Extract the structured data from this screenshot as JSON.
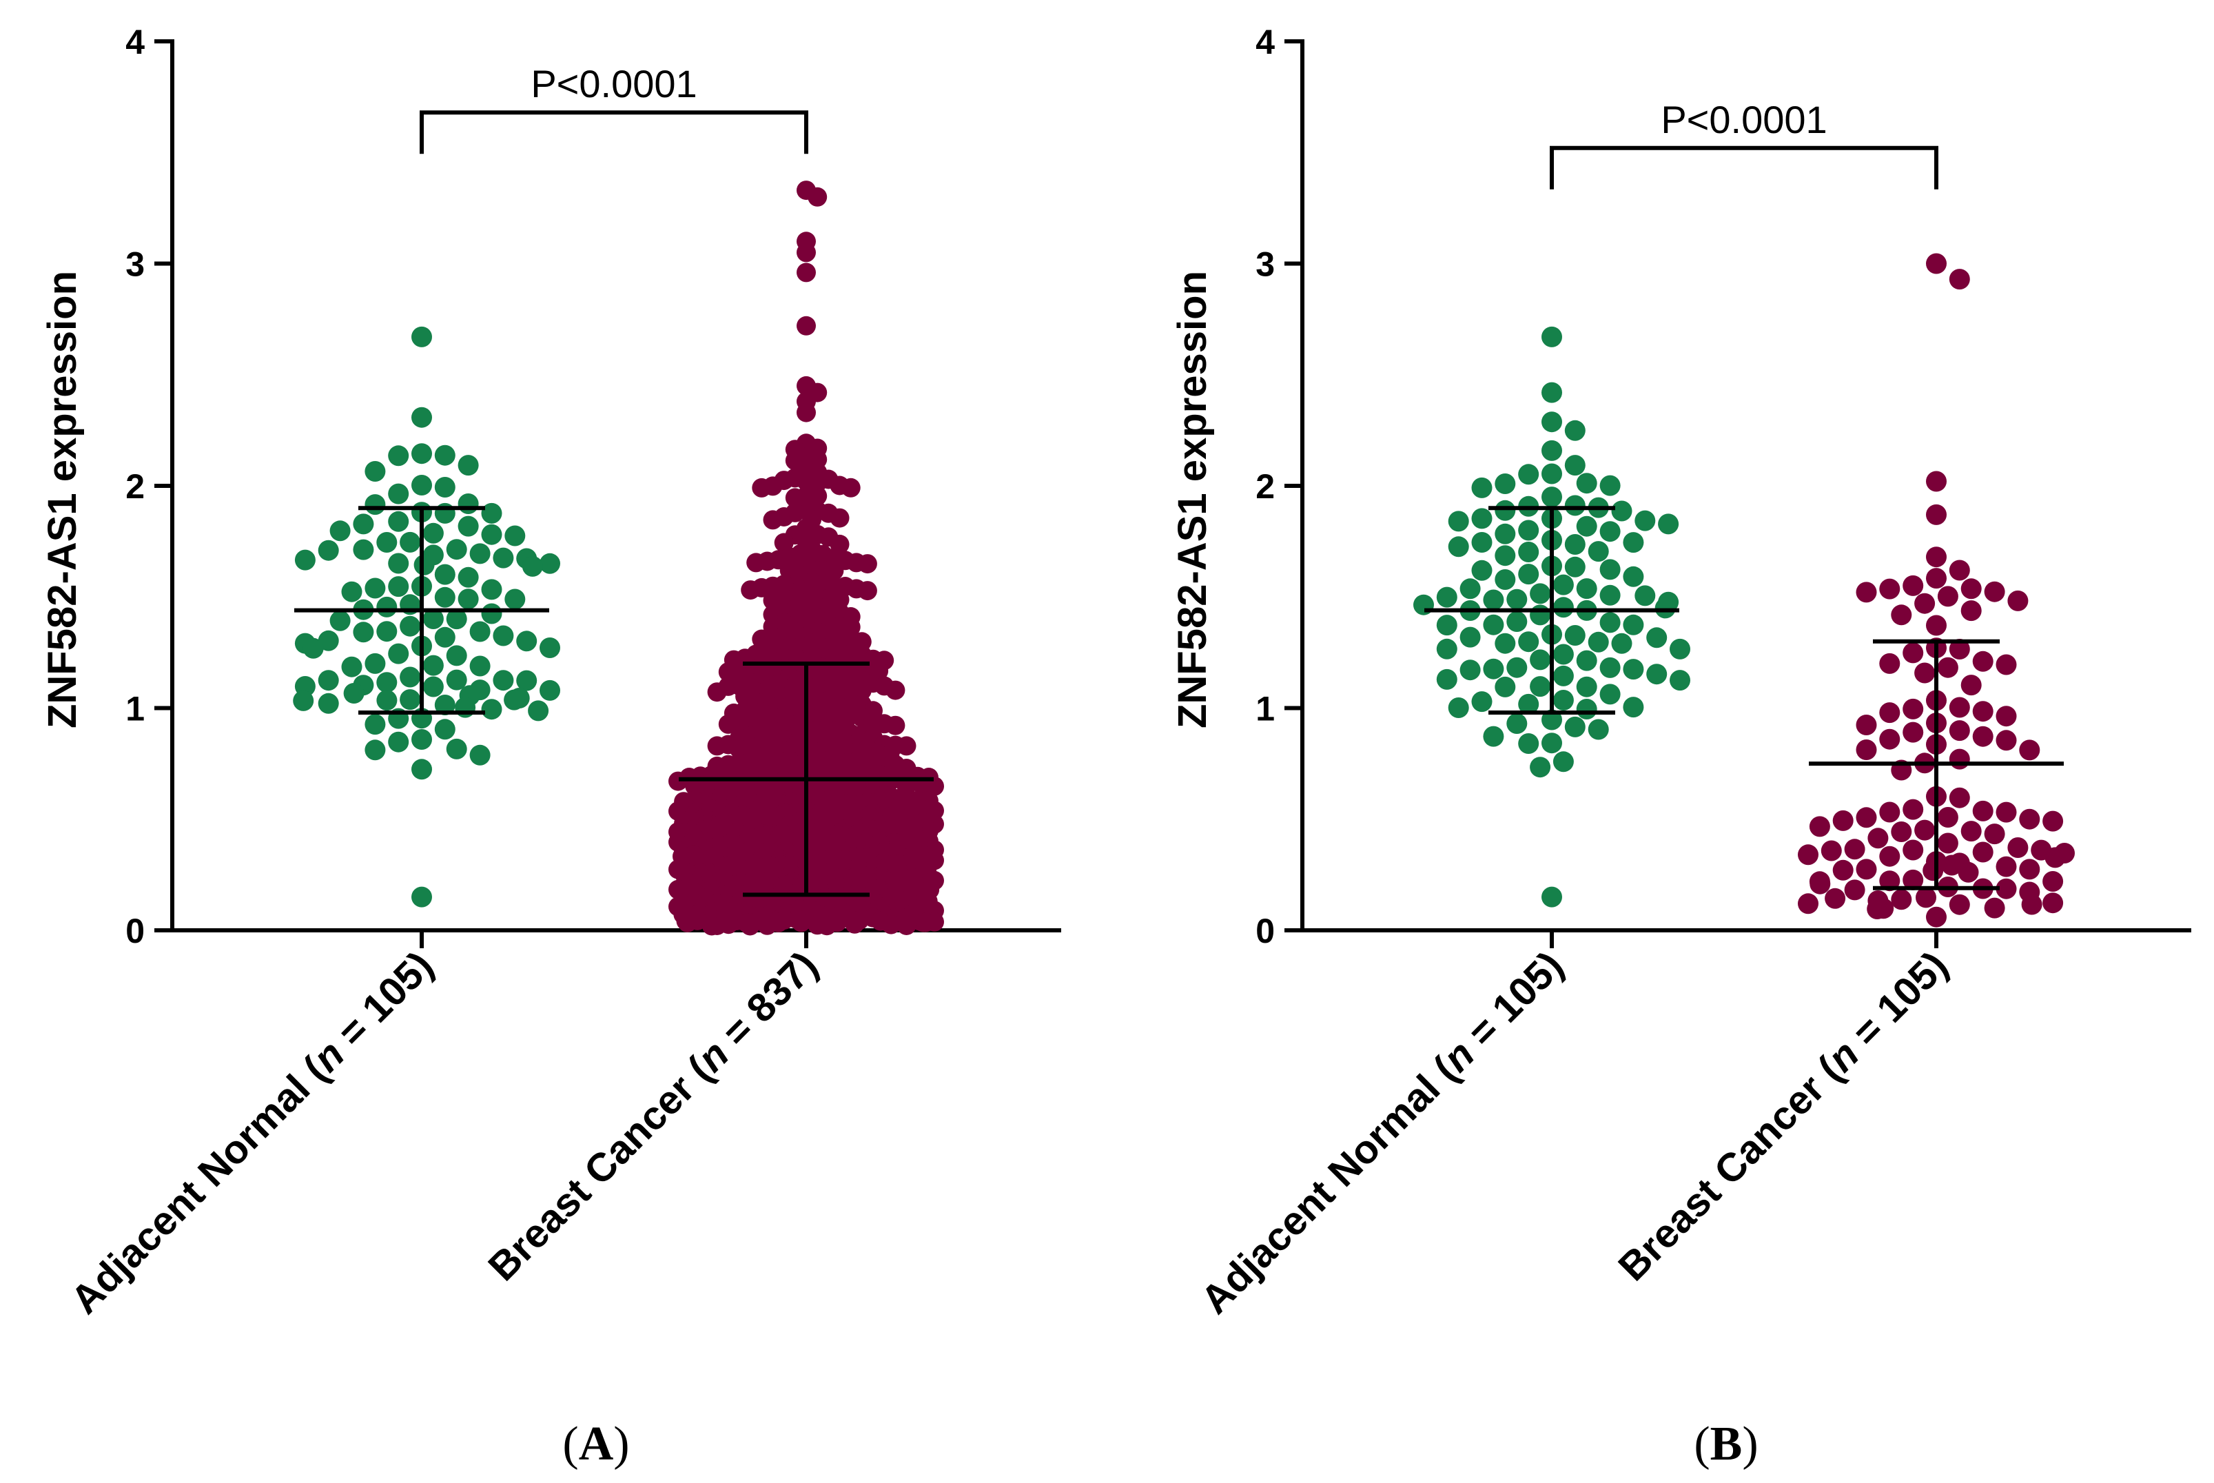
{
  "chart_data": [
    {
      "type": "scatter",
      "panel": "A",
      "ylabel": "ZNF582-AS1 expression",
      "ylim": [
        0,
        4
      ],
      "yticks": [
        "0",
        "1",
        "2",
        "3",
        "4"
      ],
      "categories": [
        {
          "name": "Adjacent Normal",
          "n_label": "n",
          "n_value": "105",
          "n": 105,
          "color": "#15814A",
          "mean": 1.44,
          "sd_upper": 1.9,
          "sd_lower": 0.98,
          "min": 0.15,
          "max": 2.67,
          "shape": "normal"
        },
        {
          "name": "Breast Cancer",
          "n_label": "n",
          "n_value": "837",
          "n": 837,
          "color": "#7A0038",
          "mean": 0.68,
          "sd_upper": 1.2,
          "sd_lower": 0.16,
          "min": 0.02,
          "max": 3.33,
          "shape": "skew"
        }
      ],
      "comparison": {
        "text": "P<0.0001",
        "y": 3.68
      }
    },
    {
      "type": "scatter",
      "panel": "B",
      "ylabel": "ZNF582-AS1 expression",
      "ylim": [
        0,
        4
      ],
      "yticks": [
        "0",
        "1",
        "2",
        "3",
        "4"
      ],
      "categories": [
        {
          "name": "Adjacent Normal",
          "n_label": "n",
          "n_value": "105",
          "n": 105,
          "color": "#15814A",
          "mean": 1.44,
          "sd_upper": 1.9,
          "sd_lower": 0.98,
          "min": 0.15,
          "max": 2.67,
          "shape": "normal"
        },
        {
          "name": "Breast Cancer",
          "n_label": "n",
          "n_value": "105",
          "n": 105,
          "color": "#7A0038",
          "mean": 0.75,
          "sd_upper": 1.3,
          "sd_lower": 0.19,
          "min": 0.06,
          "max": 3.0,
          "shape": "spread"
        }
      ],
      "comparison": {
        "text": "P<0.0001",
        "y": 3.52
      }
    }
  ]
}
